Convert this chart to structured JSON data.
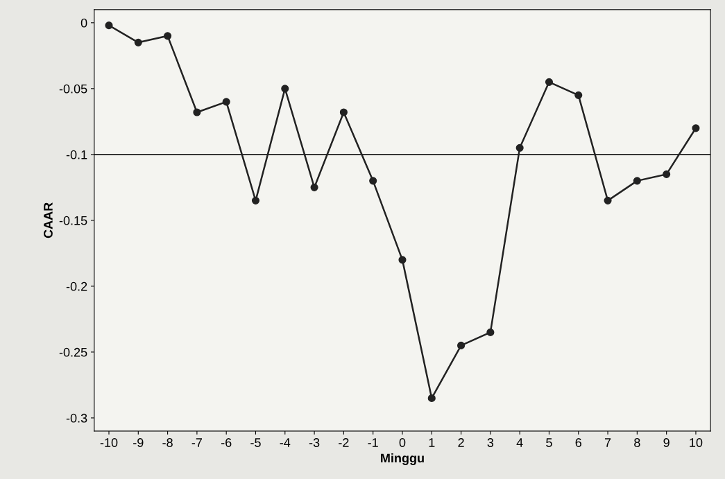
{
  "chart_data": {
    "type": "line",
    "xlabel": "Minggu",
    "ylabel": "CAAR",
    "x": [
      -10,
      -9,
      -8,
      -7,
      -6,
      -5,
      -4,
      -3,
      -2,
      -1,
      0,
      1,
      2,
      3,
      4,
      5,
      6,
      7,
      8,
      9,
      10
    ],
    "series": [
      {
        "color": "#222222",
        "values": [
          -0.002,
          -0.015,
          -0.01,
          -0.068,
          -0.06,
          -0.135,
          -0.05,
          -0.125,
          -0.068,
          -0.12,
          -0.18,
          -0.285,
          -0.245,
          -0.235,
          -0.095,
          -0.045,
          -0.055,
          -0.135,
          -0.12,
          -0.115,
          -0.08
        ]
      }
    ],
    "xlim": [
      -10.5,
      10.5
    ],
    "xticks": [
      -10,
      -9,
      -8,
      -7,
      -6,
      -5,
      -4,
      -3,
      -2,
      -1,
      0,
      1,
      2,
      3,
      4,
      5,
      6,
      7,
      8,
      9,
      10
    ],
    "ylim": [
      -0.31,
      0.01
    ],
    "yticks": [
      0,
      -0.05,
      -0.1,
      -0.15,
      -0.2,
      -0.25,
      -0.3
    ],
    "ref_lines": [
      {
        "axis": "y",
        "value": -0.1,
        "color": "#222222"
      }
    ],
    "marker": "circle",
    "line_style": "solid",
    "grid": false,
    "legend": false
  }
}
